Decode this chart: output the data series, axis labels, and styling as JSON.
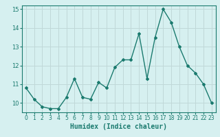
{
  "x": [
    0,
    1,
    2,
    3,
    4,
    5,
    6,
    7,
    8,
    9,
    10,
    11,
    12,
    13,
    14,
    15,
    16,
    17,
    18,
    19,
    20,
    21,
    22,
    23
  ],
  "y": [
    10.8,
    10.2,
    9.8,
    9.7,
    9.7,
    10.3,
    11.3,
    10.3,
    10.2,
    11.1,
    10.8,
    11.9,
    12.3,
    12.3,
    13.7,
    11.3,
    13.5,
    15.0,
    14.3,
    13.0,
    12.0,
    11.6,
    11.0,
    10.0
  ],
  "xlabel": "Humidex (Indice chaleur)",
  "ylim": [
    9.5,
    15.2
  ],
  "xlim": [
    -0.5,
    23.5
  ],
  "yticks": [
    10,
    11,
    12,
    13,
    14,
    15
  ],
  "xtick_labels": [
    "0",
    "1",
    "2",
    "3",
    "4",
    "5",
    "6",
    "7",
    "8",
    "9",
    "10",
    "11",
    "12",
    "13",
    "14",
    "15",
    "16",
    "17",
    "18",
    "19",
    "20",
    "21",
    "22",
    "23"
  ],
  "line_color": "#1a7a6e",
  "marker": "D",
  "marker_size": 2,
  "bg_color": "#d6f0f0",
  "grid_color": "#c0d8d8",
  "axis_color": "#1a7a6e",
  "label_color": "#1a7a6e",
  "tick_color": "#1a7a6e",
  "xlabel_fontsize": 7,
  "ytick_fontsize": 6,
  "xtick_fontsize": 5.5,
  "line_width": 1.0
}
